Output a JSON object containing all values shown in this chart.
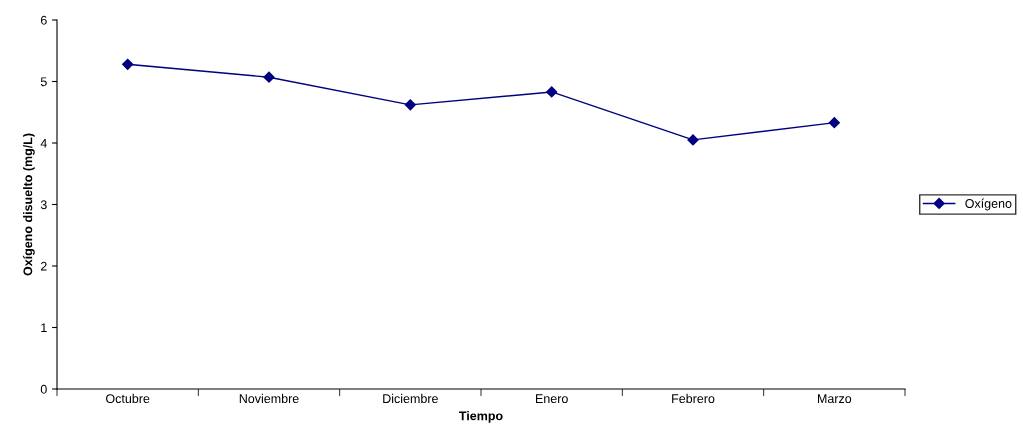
{
  "chart_data": {
    "type": "line",
    "xlabel": "Tiempo",
    "ylabel": "Oxígeno disuelto (mg/L)",
    "categories": [
      "Octubre",
      "Noviembre",
      "Diciembre",
      "Enero",
      "Febrero",
      "Marzo"
    ],
    "series": [
      {
        "name": "Oxígeno",
        "color": "#000080",
        "values": [
          5.28,
          5.07,
          4.62,
          4.83,
          4.05,
          4.33
        ]
      }
    ],
    "ylim": [
      0,
      6
    ],
    "yticks": [
      0,
      1,
      2,
      3,
      4,
      5,
      6
    ],
    "grid": false,
    "legend": "right",
    "marker": "diamond",
    "line_style": "solid"
  }
}
